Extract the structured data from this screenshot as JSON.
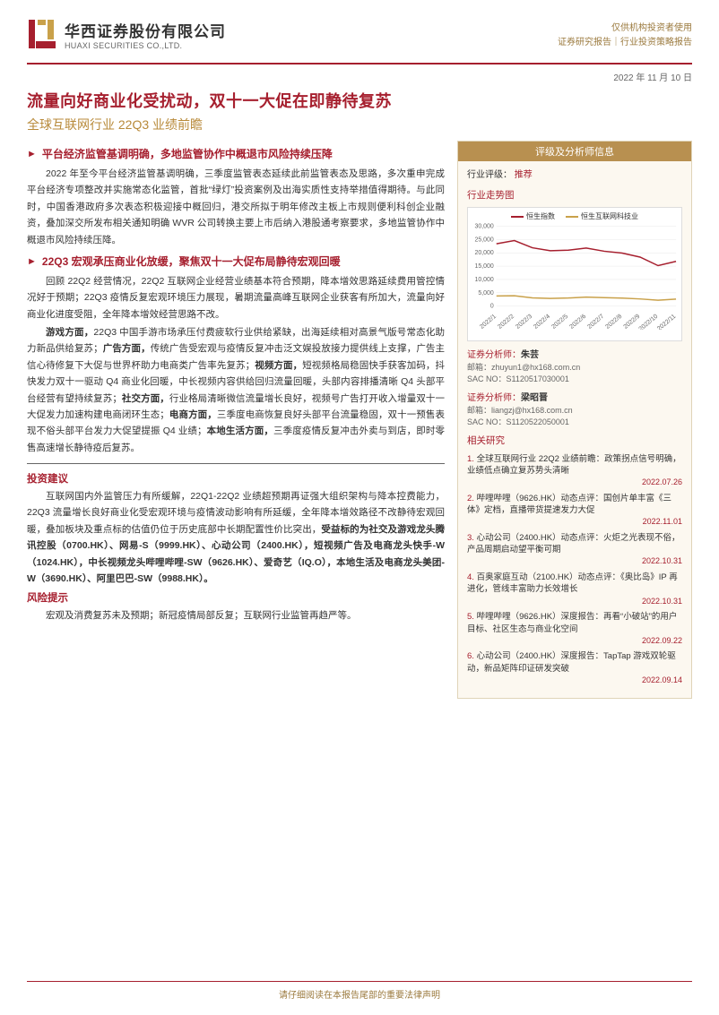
{
  "header": {
    "company_cn": "华西证券股份有限公司",
    "company_en": "HUAXI SECURITIES CO.,LTD.",
    "right_line1": "仅供机构投资者使用",
    "right_line2": "证券研究报告｜行业投资策略报告",
    "logo_color_primary": "#a61f2e",
    "logo_color_accent": "#c9a14a"
  },
  "date": "2022 年 11 月 10 日",
  "title": {
    "main": "流量向好商业化受扰动，双十一大促在即静待复苏",
    "sub": "全球互联网行业 22Q3 业绩前瞻"
  },
  "left": {
    "sections": [
      {
        "heading": "平台经济监管基调明确，多地监管协作中概退市风险持续压降",
        "paras_html": [
          "2022 年至今平台经济监管基调明确，三季度监管表态延续此前监管表态及思路，多次重申完成平台经济专项整改并实施常态化监管，首批“绿灯”投资案例及出海实质性支持举措值得期待。与此同时，中国香港政府多次表态积极迎接中概回归，港交所拟于明年修改主板上市规则便利科创企业融资，叠加深交所发布相关通知明确 WVR 公司转换主要上市后纳入港股通考察要求，多地监管协作中概退市风险持续压降。"
        ]
      },
      {
        "heading": "22Q3 宏观承压商业化放缓，聚焦双十一大促布局静待宏观回暖",
        "paras_html": [
          "回顾 22Q2 经营情况，22Q2 互联网企业经营业绩基本符合预期，降本增效思路延续费用管控情况好于预期；22Q3 疫情反复宏观环境压力展现，暑期流量高峰互联网企业获客有所加大，流量向好商业化进度受阻，全年降本增效经营思路不改。",
          "<span class=\"bold\">游戏方面，</span>22Q3 中国手游市场承压付费疲软行业供给紧缺，出海延续相对高景气版号常态化助力新品供给复苏；<span class=\"bold\">广告方面，</span>传统广告受宏观与疫情反复冲击泛文娱投放接力提供线上支撑，广告主信心待修复下大促与世界杯助力电商类广告率先复苏；<span class=\"bold\">视频方面，</span>短视频格局稳固快手获客加码，抖快发力双十一驱动 Q4 商业化回暖，中长视频内容供给回归流量回暖，头部内容排播清晰 Q4 头部平台经营有望持续复苏；<span class=\"bold\">社交方面，</span>行业格局清晰微信流量增长良好，视频号广告打开收入增量双十一大促发力加速构建电商闭环生态；<span class=\"bold\">电商方面，</span>三季度电商恢复良好头部平台流量稳固，双十一预售表现不俗头部平台发力大促望提振 Q4 业绩；<span class=\"bold\">本地生活方面，</span>三季度疫情反复冲击外卖与到店，即时零售高速增长静待疫后复苏。"
        ]
      }
    ],
    "invest_label": "投资建议",
    "invest_para_html": "互联网国内外监管压力有所缓解，22Q1-22Q2 业绩超预期再证强大组织架构与降本控费能力，22Q3 流量增长良好商业化受宏观环境与疫情波动影响有所延缓，全年降本增效路径不改静待宏观回暖，叠加板块及重点标的估值仍位于历史底部中长期配置性价比突出，<span class=\"bold\">受益标的为社交及游戏龙头腾讯控股（0700.HK）、网易-S（9999.HK）、心动公司（2400.HK），短视频广告及电商龙头快手-W（1024.HK），中长视频龙头哔哩哔哩-SW（9626.HK）、爱奇艺（IQ.O），本地生活及电商龙头美团-W（3690.HK）、阿里巴巴-SW（9988.HK）。</span>",
    "risk_label": "风险提示",
    "risk_para": "宏观及消费复苏未及预期；新冠疫情局部反复；互联网行业监管再趋严等。"
  },
  "right": {
    "header": "评级及分析师信息",
    "rating_label": "行业评级：",
    "rating_value": "推荐",
    "chart_label": "行业走势图",
    "chart": {
      "type": "line",
      "background_color": "#ffffff",
      "grid_color": "#e8e8e8",
      "ylim": [
        0,
        30000
      ],
      "ytick_step": 5000,
      "yticks": [
        "0",
        "5,000",
        "10,000",
        "15,000",
        "20,000",
        "25,000",
        "30,000"
      ],
      "xlabels": [
        "2022/1",
        "2022/2",
        "2022/3",
        "2022/4",
        "2022/5",
        "2022/6",
        "2022/7",
        "2022/8",
        "2022/9",
        "2022/10",
        "2022/11"
      ],
      "series": [
        {
          "name": "恒生指数",
          "color": "#a61f2e",
          "line_width": 1.5,
          "values": [
            23400,
            24600,
            21900,
            20800,
            21000,
            21800,
            20600,
            19900,
            18400,
            15200,
            16800
          ]
        },
        {
          "name": "恒生互联网科技业",
          "color": "#c9a14a",
          "line_width": 1.5,
          "values": [
            3800,
            3900,
            3100,
            2900,
            3050,
            3400,
            3200,
            3000,
            2700,
            2200,
            2650
          ]
        }
      ],
      "axis_fontsize": 7,
      "legend_fontsize": 8
    },
    "analysts": [
      {
        "label": "证券分析师：",
        "name": "朱芸",
        "email_label": "邮箱：",
        "email": "zhuyun1@hx168.com.cn",
        "sac_label": "SAC NO：",
        "sac": "S1120517030001"
      },
      {
        "label": "证券分析师：",
        "name": "梁昭晋",
        "email_label": "邮箱：",
        "email": "liangzj@hx168.com.cn",
        "sac_label": "SAC NO：",
        "sac": "S1120522050001"
      }
    ],
    "related_label": "相关研究",
    "related": [
      {
        "num": "1.",
        "text": "全球互联网行业 22Q2 业绩前瞻：政策拐点信号明确，业绩低点确立复苏势头清晰",
        "date": "2022.07.26"
      },
      {
        "num": "2.",
        "text": "哔哩哔哩（9626.HK）动态点评：国创片单丰富《三体》定档，直播带货提速发力大促",
        "date": "2022.11.01"
      },
      {
        "num": "3.",
        "text": "心动公司（2400.HK）动态点评：火炬之光表现不俗，产品周期启动望平衡可期",
        "date": "2022.10.31"
      },
      {
        "num": "4.",
        "text": "百奥家庭互动（2100.HK）动态点评：《奥比岛》IP 再进化，管线丰富助力长效增长",
        "date": "2022.10.31"
      },
      {
        "num": "5.",
        "text": "哔哩哔哩（9626.HK）深度报告：再看“小破站”的用户目标、社区生态与商业化空间",
        "date": "2022.09.22"
      },
      {
        "num": "6.",
        "text": "心动公司（2400.HK）深度报告：TapTap 游戏双轮驱动，新品矩阵印证研发突破",
        "date": "2022.09.14"
      }
    ]
  },
  "footer": "请仔细阅读在本报告尾部的重要法律声明"
}
